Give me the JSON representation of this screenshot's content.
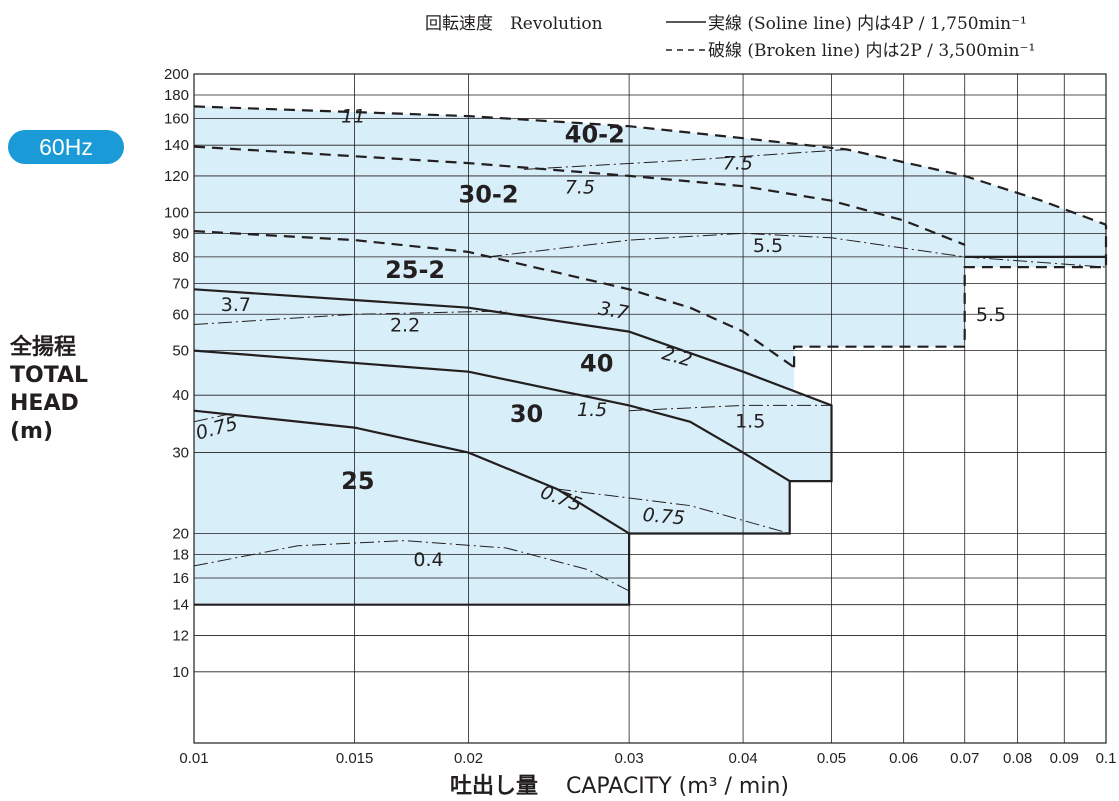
{
  "badge": "60Hz",
  "legend": {
    "revolution_label": "回転速度　Revolution",
    "solid_text": "実線 (Soline line)  内は4P / 1,750min⁻¹",
    "broken_text": "破線 (Broken line) 内は2P / 3,500min⁻¹"
  },
  "y_axis": {
    "line1": "全揚程",
    "line2": "TOTAL",
    "line3": "HEAD",
    "line4": "(m)"
  },
  "x_axis": {
    "label_jp": "吐出し量",
    "label_en": "CAPACITY (m³ / min)"
  },
  "colors": {
    "region_fill": "#d8eef9",
    "line": "#231f20",
    "badge": "#1a9ad6",
    "grid": "#231f20"
  },
  "chart_data": {
    "type": "line",
    "title": "",
    "xlabel": "吐出し量 CAPACITY (m³ / min)",
    "ylabel": "全揚程 TOTAL HEAD (m)",
    "x_scale": "log",
    "y_scale": "log",
    "xlim": [
      0.01,
      0.1
    ],
    "ylim": [
      7,
      200
    ],
    "x_ticks": [
      {
        "v": 0.01,
        "label": "0.01"
      },
      {
        "v": 0.015,
        "label": "0.015"
      },
      {
        "v": 0.02,
        "label": "0.02"
      },
      {
        "v": 0.03,
        "label": "0.03"
      },
      {
        "v": 0.04,
        "label": "0.04"
      },
      {
        "v": 0.05,
        "label": "0.05"
      },
      {
        "v": 0.06,
        "label": "0.06"
      },
      {
        "v": 0.07,
        "label": "0.07"
      },
      {
        "v": 0.08,
        "label": "0.08"
      },
      {
        "v": 0.09,
        "label": "0.09"
      },
      {
        "v": 0.1,
        "label": "0.1"
      }
    ],
    "y_ticks": [
      {
        "v": 10,
        "label": "10"
      },
      {
        "v": 12,
        "label": "12"
      },
      {
        "v": 14,
        "label": "14"
      },
      {
        "v": 16,
        "label": "16"
      },
      {
        "v": 18,
        "label": "18"
      },
      {
        "v": 20,
        "label": "20"
      },
      {
        "v": 30,
        "label": "30"
      },
      {
        "v": 40,
        "label": "40"
      },
      {
        "v": 50,
        "label": "50"
      },
      {
        "v": 60,
        "label": "60"
      },
      {
        "v": 70,
        "label": "70"
      },
      {
        "v": 80,
        "label": "80"
      },
      {
        "v": 90,
        "label": "90"
      },
      {
        "v": 100,
        "label": "100"
      },
      {
        "v": 120,
        "label": "120"
      },
      {
        "v": 140,
        "label": "140"
      },
      {
        "v": 160,
        "label": "160"
      },
      {
        "v": 180,
        "label": "180"
      },
      {
        "v": 200,
        "label": "200"
      }
    ],
    "grid": true,
    "regions": [
      {
        "name": "40-2",
        "style": "dashed",
        "points": [
          [
            0.01,
            170
          ],
          [
            0.02,
            162
          ],
          [
            0.03,
            154
          ],
          [
            0.04,
            145
          ],
          [
            0.052,
            137
          ],
          [
            0.07,
            120
          ],
          [
            0.085,
            106
          ],
          [
            0.1,
            94
          ],
          [
            0.1,
            76
          ],
          [
            0.07,
            76
          ],
          [
            0.07,
            80
          ],
          [
            0.07,
            85
          ],
          [
            0.06,
            96
          ],
          [
            0.05,
            106
          ],
          [
            0.04,
            114
          ],
          [
            0.03,
            120
          ],
          [
            0.02,
            128
          ],
          [
            0.01,
            139
          ]
        ]
      },
      {
        "name": "30-2",
        "style": "dashed",
        "points": [
          [
            0.01,
            139
          ],
          [
            0.02,
            128
          ],
          [
            0.03,
            120
          ],
          [
            0.04,
            114
          ],
          [
            0.05,
            106
          ],
          [
            0.06,
            96
          ],
          [
            0.07,
            85
          ],
          [
            0.07,
            51
          ],
          [
            0.0455,
            51
          ],
          [
            0.0455,
            46
          ],
          [
            0.04,
            55
          ],
          [
            0.03,
            68
          ],
          [
            0.02,
            82
          ],
          [
            0.01,
            91
          ]
        ]
      },
      {
        "name": "25-2",
        "style": "dashed",
        "points": [
          [
            0.01,
            91
          ],
          [
            0.015,
            87
          ],
          [
            0.02,
            82
          ],
          [
            0.03,
            68
          ],
          [
            0.035,
            62
          ],
          [
            0.04,
            55
          ],
          [
            0.0455,
            46
          ],
          [
            0.0455,
            39
          ],
          [
            0.05,
            38
          ],
          [
            0.04,
            45
          ],
          [
            0.03,
            55
          ],
          [
            0.02,
            62
          ],
          [
            0.01,
            68
          ]
        ]
      },
      {
        "name": "40",
        "style": "solid",
        "points": [
          [
            0.01,
            68
          ],
          [
            0.02,
            62
          ],
          [
            0.03,
            55
          ],
          [
            0.04,
            45
          ],
          [
            0.05,
            38
          ],
          [
            0.05,
            26
          ],
          [
            0.045,
            26
          ],
          [
            0.04,
            30
          ],
          [
            0.035,
            35
          ],
          [
            0.03,
            38
          ],
          [
            0.02,
            45
          ],
          [
            0.01,
            50
          ]
        ]
      },
      {
        "name": "30",
        "style": "solid",
        "points": [
          [
            0.01,
            50
          ],
          [
            0.02,
            45
          ],
          [
            0.03,
            38
          ],
          [
            0.035,
            35
          ],
          [
            0.04,
            30
          ],
          [
            0.045,
            26
          ],
          [
            0.045,
            20
          ],
          [
            0.03,
            20
          ],
          [
            0.03,
            20
          ],
          [
            0.025,
            25
          ],
          [
            0.02,
            30
          ],
          [
            0.015,
            34
          ],
          [
            0.01,
            37
          ]
        ]
      },
      {
        "name": "25",
        "style": "solid",
        "points": [
          [
            0.01,
            37
          ],
          [
            0.015,
            34
          ],
          [
            0.02,
            30
          ],
          [
            0.025,
            25
          ],
          [
            0.03,
            20
          ],
          [
            0.03,
            14
          ],
          [
            0.01,
            14
          ]
        ]
      }
    ],
    "boundaries": [
      {
        "style": "dashed",
        "points": [
          [
            0.01,
            170
          ],
          [
            0.02,
            162
          ],
          [
            0.03,
            154
          ],
          [
            0.04,
            145
          ],
          [
            0.052,
            137
          ],
          [
            0.07,
            120
          ],
          [
            0.085,
            106
          ],
          [
            0.1,
            94
          ]
        ]
      },
      {
        "style": "dashed",
        "points": [
          [
            0.01,
            139
          ],
          [
            0.02,
            128
          ],
          [
            0.03,
            120
          ],
          [
            0.04,
            114
          ],
          [
            0.05,
            106
          ],
          [
            0.06,
            96
          ],
          [
            0.07,
            85
          ]
        ]
      },
      {
        "style": "dashed",
        "points": [
          [
            0.01,
            91
          ],
          [
            0.015,
            87
          ],
          [
            0.02,
            82
          ],
          [
            0.03,
            68
          ],
          [
            0.035,
            62
          ],
          [
            0.04,
            55
          ],
          [
            0.0455,
            46
          ]
        ]
      },
      {
        "style": "dashed",
        "points": [
          [
            0.0455,
            46
          ],
          [
            0.0455,
            51
          ],
          [
            0.07,
            51
          ],
          [
            0.07,
            76
          ],
          [
            0.1,
            76
          ],
          [
            0.1,
            94
          ]
        ]
      },
      {
        "style": "solid",
        "points": [
          [
            0.01,
            68
          ],
          [
            0.02,
            62
          ],
          [
            0.03,
            55
          ],
          [
            0.04,
            45
          ],
          [
            0.05,
            38
          ],
          [
            0.05,
            26
          ],
          [
            0.045,
            26
          ]
        ]
      },
      {
        "style": "solid",
        "points": [
          [
            0.01,
            50
          ],
          [
            0.02,
            45
          ],
          [
            0.03,
            38
          ],
          [
            0.035,
            35
          ],
          [
            0.04,
            30
          ],
          [
            0.045,
            26
          ],
          [
            0.045,
            20
          ],
          [
            0.03,
            20
          ]
        ]
      },
      {
        "style": "solid",
        "points": [
          [
            0.01,
            37
          ],
          [
            0.015,
            34
          ],
          [
            0.02,
            30
          ],
          [
            0.025,
            25
          ],
          [
            0.03,
            20
          ],
          [
            0.03,
            14
          ],
          [
            0.01,
            14
          ]
        ]
      },
      {
        "style": "solid",
        "points": [
          [
            0.07,
            80
          ],
          [
            0.1,
            80
          ]
        ]
      }
    ],
    "kw_lines": [
      {
        "label": "7.5",
        "points": [
          [
            0.023,
            124
          ],
          [
            0.035,
            130
          ],
          [
            0.052,
            137
          ]
        ]
      },
      {
        "label": "5.5",
        "points": [
          [
            0.021,
            80
          ],
          [
            0.03,
            87
          ],
          [
            0.04,
            90
          ],
          [
            0.05,
            88
          ],
          [
            0.07,
            80
          ],
          [
            0.1,
            76
          ]
        ]
      },
      {
        "label": "2.2",
        "points": [
          [
            0.01,
            57
          ],
          [
            0.015,
            60
          ],
          [
            0.022,
            61
          ]
        ]
      },
      {
        "label": "1.5",
        "points": [
          [
            0.03,
            37
          ],
          [
            0.04,
            38
          ],
          [
            0.05,
            38
          ]
        ]
      },
      {
        "label": "0.75",
        "points": [
          [
            0.025,
            25
          ],
          [
            0.035,
            23
          ],
          [
            0.045,
            20
          ]
        ]
      },
      {
        "label": "0.75",
        "points": [
          [
            0.01,
            35
          ],
          [
            0.011,
            36.5
          ]
        ]
      },
      {
        "label": "0.4",
        "points": [
          [
            0.01,
            17
          ],
          [
            0.013,
            18.8
          ],
          [
            0.017,
            19.3
          ],
          [
            0.022,
            18.6
          ],
          [
            0.027,
            16.7
          ],
          [
            0.03,
            15
          ]
        ]
      }
    ],
    "model_labels": [
      {
        "text": "40-2",
        "x": 0.0255,
        "y": 142
      },
      {
        "text": "30-2",
        "x": 0.0195,
        "y": 105
      },
      {
        "text": "25-2",
        "x": 0.0162,
        "y": 72
      },
      {
        "text": "40",
        "x": 0.0265,
        "y": 45
      },
      {
        "text": "30",
        "x": 0.0222,
        "y": 35
      },
      {
        "text": "25",
        "x": 0.0145,
        "y": 25
      }
    ],
    "kw_labels": [
      {
        "text": "11",
        "x": 0.0145,
        "y": 157,
        "italic": true,
        "rot": 0
      },
      {
        "text": "7.5",
        "x": 0.038,
        "y": 124,
        "italic": true,
        "rot": 0
      },
      {
        "text": "7.5",
        "x": 0.0255,
        "y": 110,
        "italic": true,
        "rot": 0
      },
      {
        "text": "5.5",
        "x": 0.041,
        "y": 82,
        "italic": false,
        "rot": 0
      },
      {
        "text": "5.5",
        "x": 0.072,
        "y": 58,
        "italic": false,
        "rot": 0
      },
      {
        "text": "3.7",
        "x": 0.0107,
        "y": 61,
        "italic": false,
        "rot": 0
      },
      {
        "text": "3.7",
        "x": 0.0277,
        "y": 60,
        "italic": true,
        "rot": 10
      },
      {
        "text": "2.2",
        "x": 0.0164,
        "y": 55,
        "italic": false,
        "rot": 0
      },
      {
        "text": "2.2",
        "x": 0.0325,
        "y": 48,
        "italic": true,
        "rot": 15
      },
      {
        "text": "1.5",
        "x": 0.0263,
        "y": 36,
        "italic": true,
        "rot": 0
      },
      {
        "text": "1.5",
        "x": 0.0392,
        "y": 34,
        "italic": false,
        "rot": 0
      },
      {
        "text": "0.75",
        "x": 0.0101,
        "y": 32,
        "italic": true,
        "rot": -15
      },
      {
        "text": "0.75",
        "x": 0.0239,
        "y": 24,
        "italic": true,
        "rot": 20
      },
      {
        "text": "0.75",
        "x": 0.031,
        "y": 21.3,
        "italic": true,
        "rot": 5
      },
      {
        "text": "0.4",
        "x": 0.0174,
        "y": 17,
        "italic": false,
        "rot": 0
      }
    ]
  }
}
